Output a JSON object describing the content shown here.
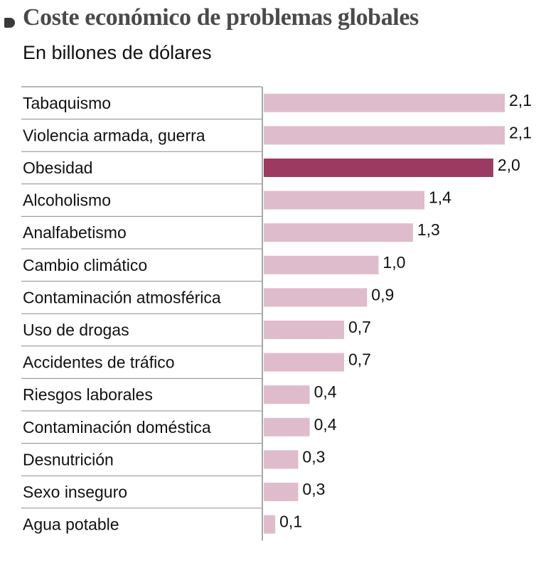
{
  "chart_data": {
    "type": "bar",
    "orientation": "horizontal",
    "title": "Coste económico de problemas globales",
    "subtitle": "En billones de dólares",
    "categories": [
      "Tabaquismo",
      "Violencia armada, guerra",
      "Obesidad",
      "Alcoholismo",
      "Analfabetismo",
      "Cambio climático",
      "Contaminación atmosférica",
      "Uso de drogas",
      "Accidentes de tráfico",
      "Riesgos laborales",
      "Contaminación doméstica",
      "Desnutrición",
      "Sexo inseguro",
      "Agua potable"
    ],
    "values": [
      2.1,
      2.1,
      2.0,
      1.4,
      1.3,
      1.0,
      0.9,
      0.7,
      0.7,
      0.4,
      0.4,
      0.3,
      0.3,
      0.1
    ],
    "value_labels": [
      "2,1",
      "2,1",
      "2,0",
      "1,4",
      "1,3",
      "1,0",
      "0,9",
      "0,7",
      "0,7",
      "0,4",
      "0,4",
      "0,3",
      "0,3",
      "0,1"
    ],
    "highlight": "Obesidad",
    "xlim": [
      0,
      2.1
    ],
    "colors": {
      "bar": "#dfbccb",
      "highlight": "#9c3a62",
      "grid": "#8a8a8a"
    }
  }
}
